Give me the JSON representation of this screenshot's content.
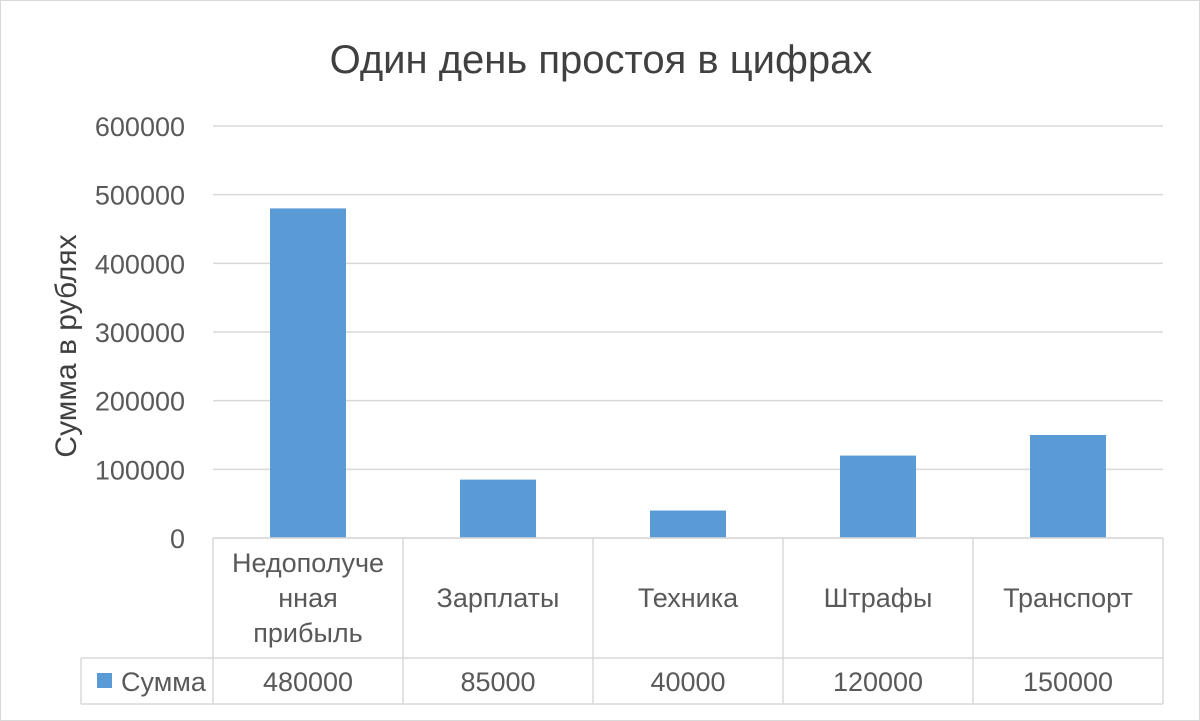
{
  "chart_data": {
    "type": "bar",
    "title": "Один день простоя в цифрах",
    "ylabel": "Сумма в рублях",
    "xlabel": "",
    "ylim": [
      0,
      600000
    ],
    "yticks": [
      "0",
      "100000",
      "200000",
      "300000",
      "400000",
      "500000",
      "600000"
    ],
    "categories": [
      [
        "Недополуче",
        "нная",
        "прибыль"
      ],
      [
        "Зарплаты"
      ],
      [
        "Техника"
      ],
      [
        "Штрафы"
      ],
      [
        "Транспорт"
      ]
    ],
    "series": [
      {
        "name": "Сумма",
        "values": [
          480000,
          85000,
          40000,
          120000,
          150000
        ],
        "value_labels": [
          "480000",
          "85000",
          "40000",
          "120000",
          "150000"
        ],
        "color": "#5b9bd5"
      }
    ],
    "grid": true,
    "legend": "data-table",
    "data_table": true
  }
}
